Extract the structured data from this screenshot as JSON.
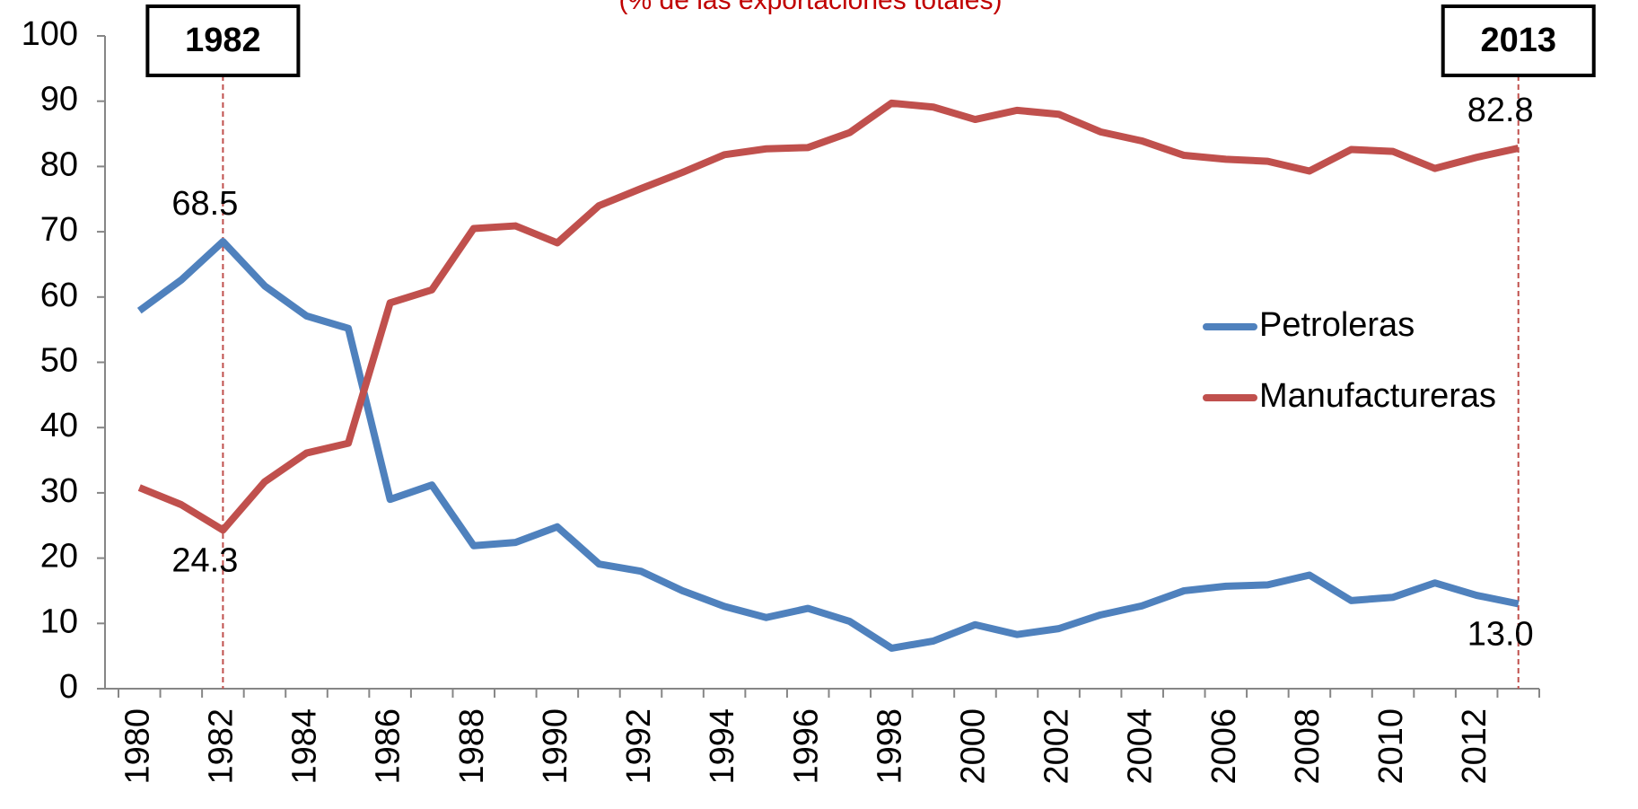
{
  "chart_data": {
    "type": "line",
    "subtitle": "(% de las exportaciones totales)",
    "x": [
      1980,
      1981,
      1982,
      1983,
      1984,
      1985,
      1986,
      1987,
      1988,
      1989,
      1990,
      1991,
      1992,
      1993,
      1994,
      1995,
      1996,
      1997,
      1998,
      1999,
      2000,
      2001,
      2002,
      2003,
      2004,
      2005,
      2006,
      2007,
      2008,
      2009,
      2010,
      2011,
      2012,
      2013
    ],
    "xlim": [
      1979.5,
      2013.5
    ],
    "xticks": [
      1980,
      1982,
      1984,
      1986,
      1988,
      1990,
      1992,
      1994,
      1996,
      1998,
      2000,
      2002,
      2004,
      2006,
      2008,
      2010,
      2012
    ],
    "ylim": [
      0,
      100
    ],
    "yticks": [
      0,
      10,
      20,
      30,
      40,
      50,
      60,
      70,
      80,
      90,
      100
    ],
    "legend": "right",
    "series": [
      {
        "name": "Petroleras",
        "color": "#4f81bd",
        "values": [
          57.9,
          62.6,
          68.5,
          61.7,
          57.1,
          55.2,
          29.0,
          31.2,
          21.9,
          22.4,
          24.8,
          19.1,
          18.0,
          15.0,
          12.6,
          10.9,
          12.3,
          10.3,
          6.2,
          7.3,
          9.8,
          8.3,
          9.2,
          11.3,
          12.7,
          15.0,
          15.7,
          15.9,
          17.4,
          13.5,
          14.0,
          16.2,
          14.3,
          13.0
        ],
        "value_labels": [
          null,
          null,
          "68.5",
          null,
          null,
          null,
          null,
          null,
          null,
          null,
          null,
          null,
          null,
          null,
          null,
          null,
          null,
          null,
          null,
          null,
          null,
          null,
          null,
          null,
          null,
          null,
          null,
          null,
          null,
          null,
          null,
          null,
          null,
          "13.0"
        ]
      },
      {
        "name": "Manufactureras",
        "color": "#c0504d",
        "values": [
          30.8,
          28.2,
          24.3,
          31.7,
          36.1,
          37.6,
          59.1,
          61.1,
          70.5,
          70.9,
          68.3,
          74.0,
          76.6,
          79.1,
          81.8,
          82.7,
          82.9,
          85.2,
          89.7,
          89.1,
          87.2,
          88.6,
          88.0,
          85.3,
          83.9,
          81.7,
          81.1,
          80.8,
          79.3,
          82.6,
          82.3,
          79.7,
          81.4,
          82.8
        ],
        "value_labels": [
          null,
          null,
          "24.3",
          null,
          null,
          null,
          null,
          null,
          null,
          null,
          null,
          null,
          null,
          null,
          null,
          null,
          null,
          null,
          null,
          null,
          null,
          null,
          null,
          null,
          null,
          null,
          null,
          null,
          null,
          null,
          null,
          null,
          null,
          "82.8"
        ]
      }
    ],
    "annotations": [
      {
        "text": "1982",
        "x": 1982
      },
      {
        "text": "2013",
        "x": 2013
      }
    ]
  }
}
